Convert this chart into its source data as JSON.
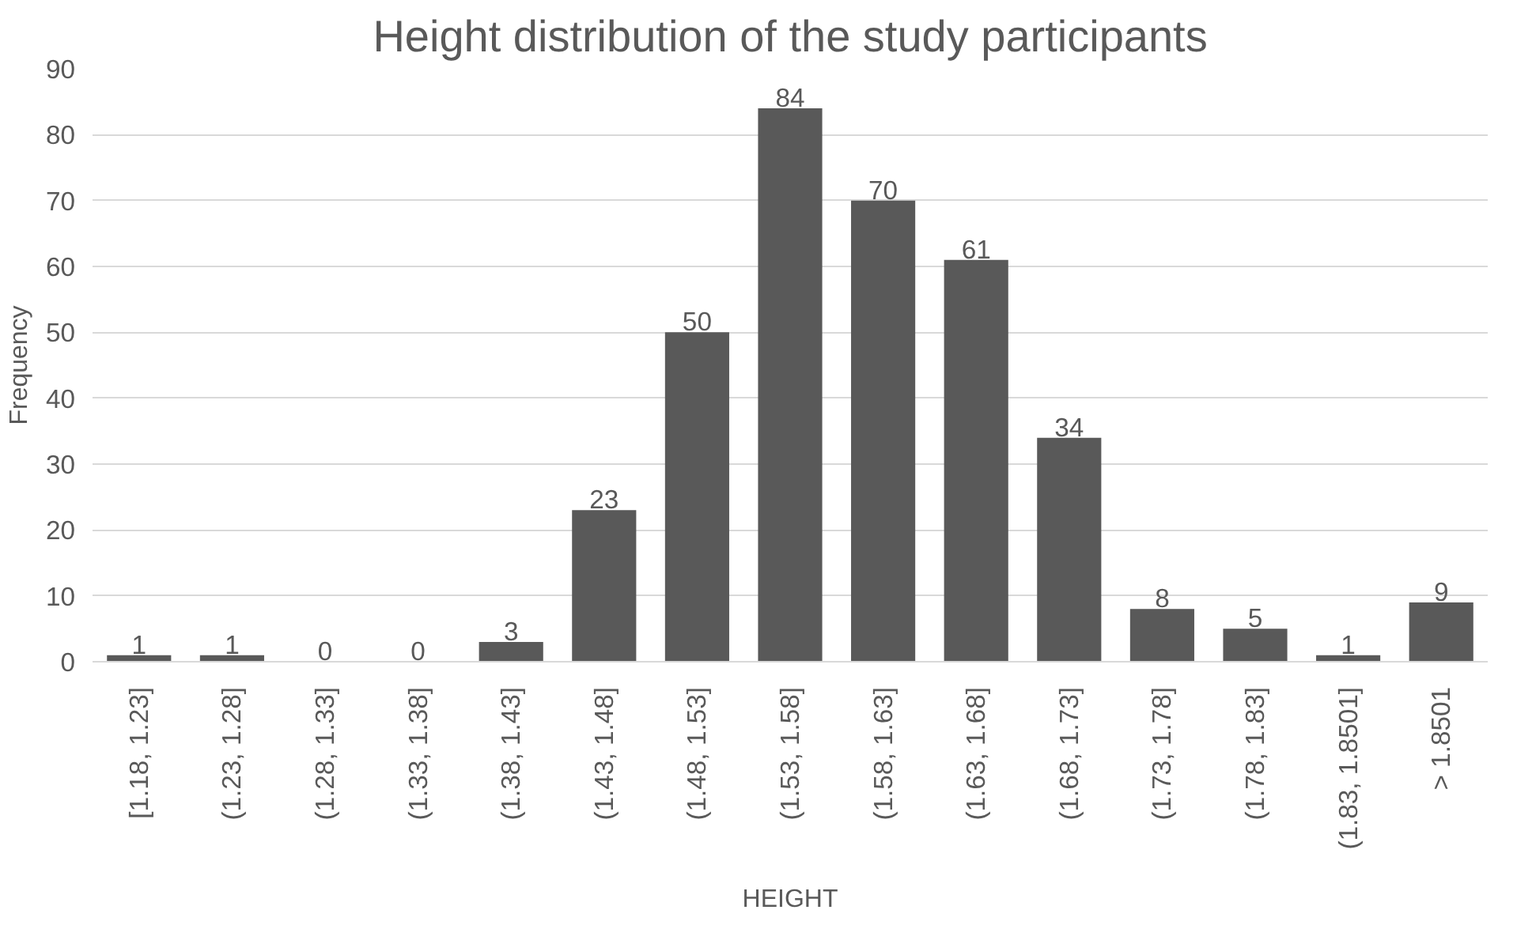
{
  "chart_data": {
    "type": "bar",
    "title": "Height distribution of the study participants",
    "xlabel": "HEIGHT",
    "ylabel": "Frequency",
    "categories": [
      "[1.18, 1.23]",
      "(1.23, 1.28]",
      "(1.28, 1.33]",
      "(1.33, 1.38]",
      "(1.38, 1.43]",
      "(1.43, 1.48]",
      "(1.48, 1.53]",
      "(1.53, 1.58]",
      "(1.58, 1.63]",
      "(1.63, 1.68]",
      "(1.68, 1.73]",
      "(1.73, 1.78]",
      "(1.78, 1.83]",
      "(1.83, 1.8501]",
      "> 1.8501"
    ],
    "values": [
      1,
      1,
      0,
      0,
      3,
      23,
      50,
      84,
      70,
      61,
      34,
      8,
      5,
      1,
      9
    ],
    "color": "#595959",
    "ylim": [
      0,
      90
    ],
    "yticks": [
      0,
      10,
      20,
      30,
      40,
      50,
      60,
      70,
      80,
      90
    ],
    "grid": "y",
    "data_labels": true
  }
}
